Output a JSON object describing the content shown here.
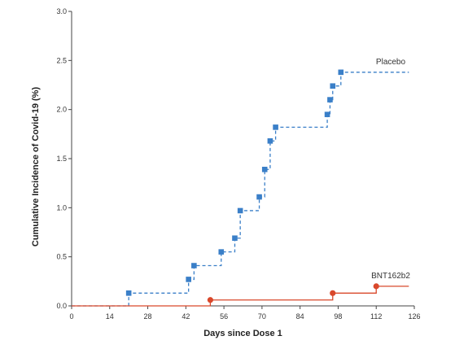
{
  "chart_data": {
    "type": "line",
    "title": "",
    "xlabel": "Days since Dose 1",
    "ylabel": "Cumulative Incidence of Covid-19 (%)",
    "xlim": [
      0,
      126
    ],
    "ylim": [
      0,
      3.0
    ],
    "xticks": [
      0,
      14,
      28,
      42,
      56,
      70,
      84,
      98,
      112,
      126
    ],
    "yticks": [
      0.0,
      0.5,
      1.0,
      1.5,
      2.0,
      2.5,
      3.0
    ],
    "xtick_labels": [
      "0",
      "14",
      "28",
      "42",
      "56",
      "70",
      "84",
      "98",
      "112",
      "126"
    ],
    "ytick_labels": [
      "0.0",
      "0.5",
      "1.0",
      "1.5",
      "2.0",
      "2.5",
      "3.0"
    ],
    "grid": false,
    "series": [
      {
        "name": "Placebo",
        "color": "#3a7fc8",
        "line_style": "dashed",
        "marker": "square",
        "x": [
          0,
          21,
          43,
          45,
          55,
          60,
          62,
          69,
          71,
          73,
          75,
          94,
          95,
          96,
          99,
          124
        ],
        "y": [
          0.0,
          0.13,
          0.27,
          0.41,
          0.55,
          0.69,
          0.97,
          1.11,
          1.39,
          1.68,
          1.82,
          1.95,
          2.1,
          2.24,
          2.38,
          2.38
        ],
        "markers_x": [
          21,
          43,
          45,
          55,
          60,
          62,
          69,
          71,
          73,
          75,
          94,
          95,
          96,
          99
        ],
        "markers_y": [
          0.13,
          0.27,
          0.41,
          0.55,
          0.69,
          0.97,
          1.11,
          1.39,
          1.68,
          1.82,
          1.95,
          2.1,
          2.24,
          2.38
        ]
      },
      {
        "name": "BNT162b2",
        "color": "#d9482b",
        "line_style": "solid",
        "marker": "circle",
        "x": [
          0,
          51,
          96,
          112,
          124
        ],
        "y": [
          0.0,
          0.06,
          0.13,
          0.2,
          0.2
        ],
        "markers_x": [
          51,
          96,
          112
        ],
        "markers_y": [
          0.06,
          0.13,
          0.2
        ]
      }
    ]
  }
}
